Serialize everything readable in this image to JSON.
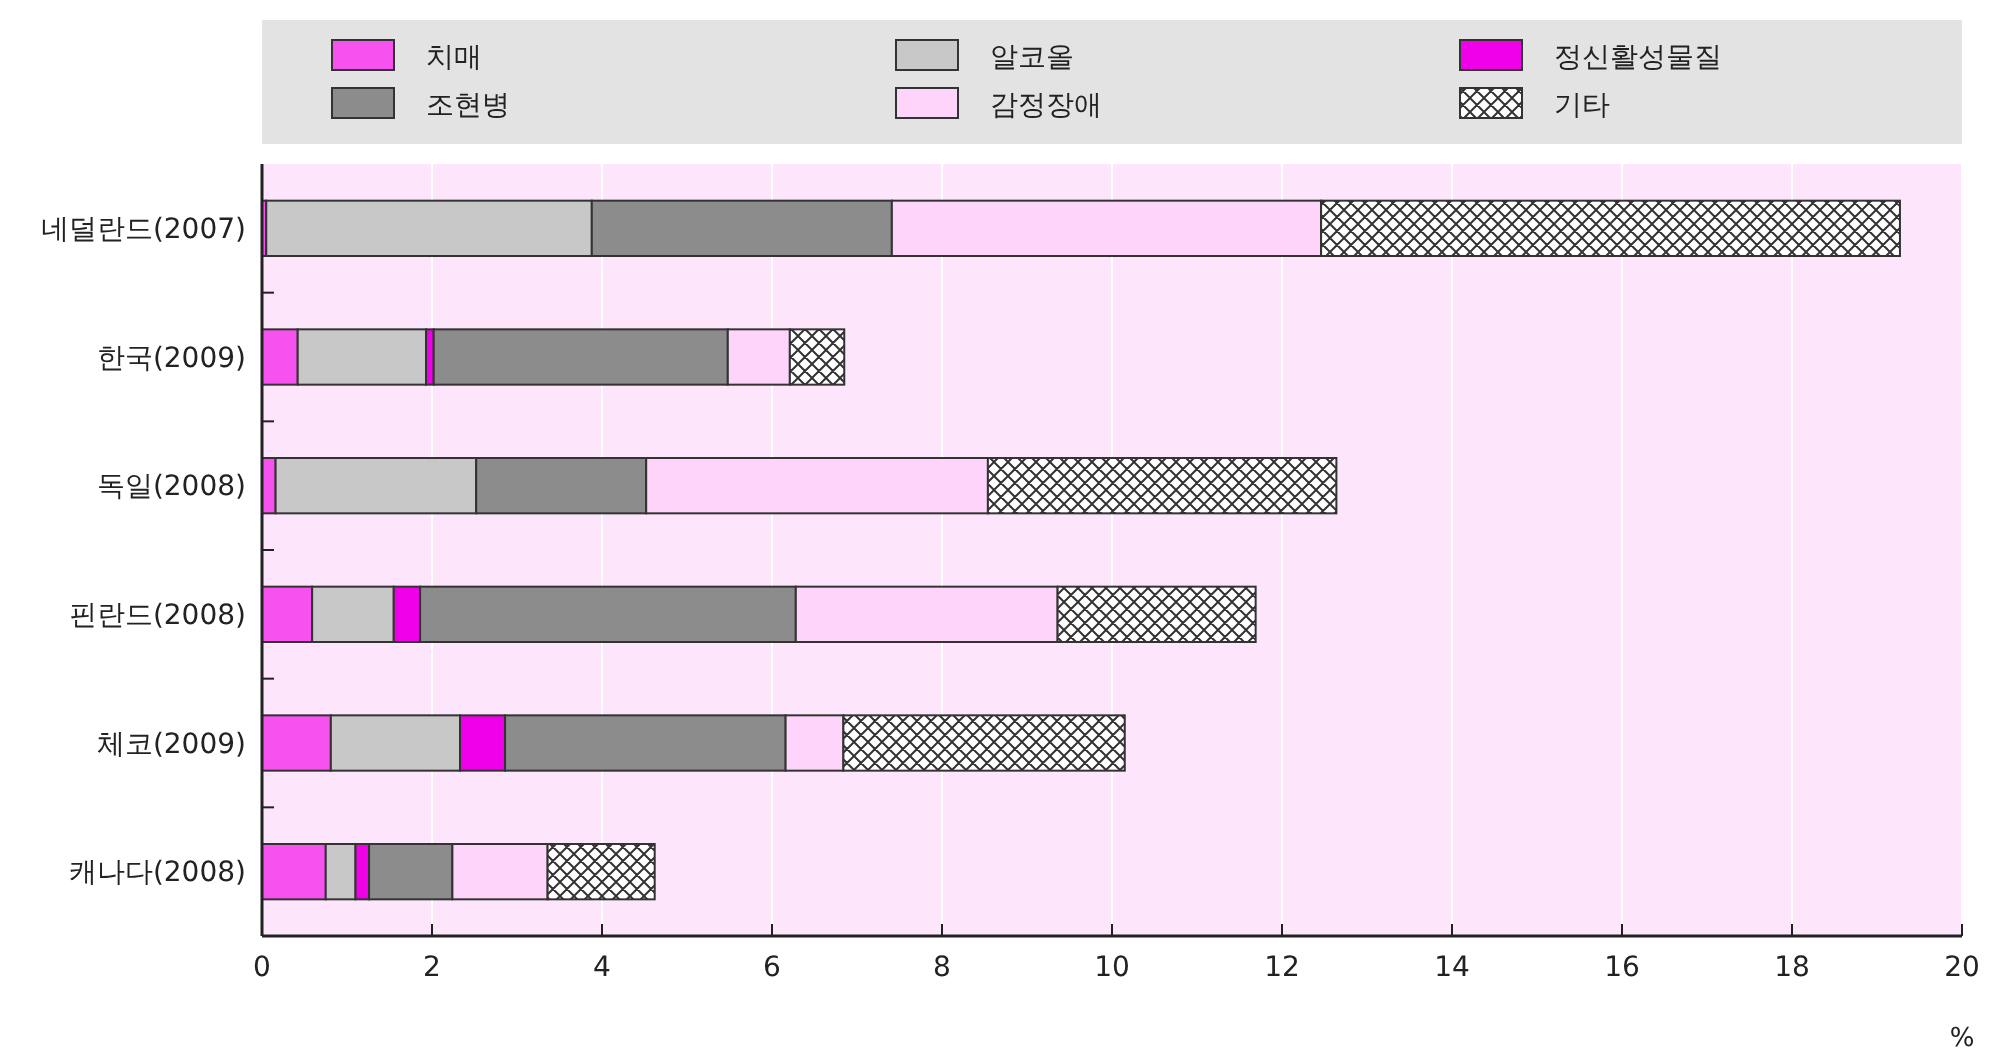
{
  "chart_data": {
    "type": "bar",
    "orientation": "horizontal",
    "stacked": true,
    "xlabel": "%",
    "categories": [
      "네덜란드(2007)",
      "한국(2009)",
      "독일(2008)",
      "핀란드(2008)",
      "체코(2009)",
      "캐나다(2008)"
    ],
    "series": [
      {
        "name": "치매",
        "color": "#f752f0",
        "values": [
          0.05,
          0.42,
          0.16,
          0.59,
          0.81,
          0.75
        ]
      },
      {
        "name": "알코올",
        "color": "#c8c8c8",
        "values": [
          3.83,
          1.51,
          2.36,
          0.96,
          1.52,
          0.35
        ]
      },
      {
        "name": "정신활성물질",
        "color": "#f000e8",
        "values": [
          0,
          0.09,
          0,
          0.31,
          0.53,
          0.16
        ]
      },
      {
        "name": "조현병",
        "color": "#8c8c8c",
        "values": [
          3.53,
          3.46,
          2.0,
          4.42,
          3.3,
          0.98
        ]
      },
      {
        "name": "감정장애",
        "color": "#ffd4fb",
        "values": [
          5.05,
          0.73,
          4.02,
          3.08,
          0.68,
          1.12
        ]
      },
      {
        "name": "기타",
        "color": "#333333",
        "values": [
          6.81,
          0.64,
          4.1,
          2.33,
          3.31,
          1.26
        ]
      }
    ],
    "xlim": [
      0,
      20
    ],
    "xticks": [
      0,
      2,
      4,
      6,
      8,
      10,
      12,
      14,
      16,
      18,
      20
    ],
    "grid": "x",
    "legend": "top"
  }
}
